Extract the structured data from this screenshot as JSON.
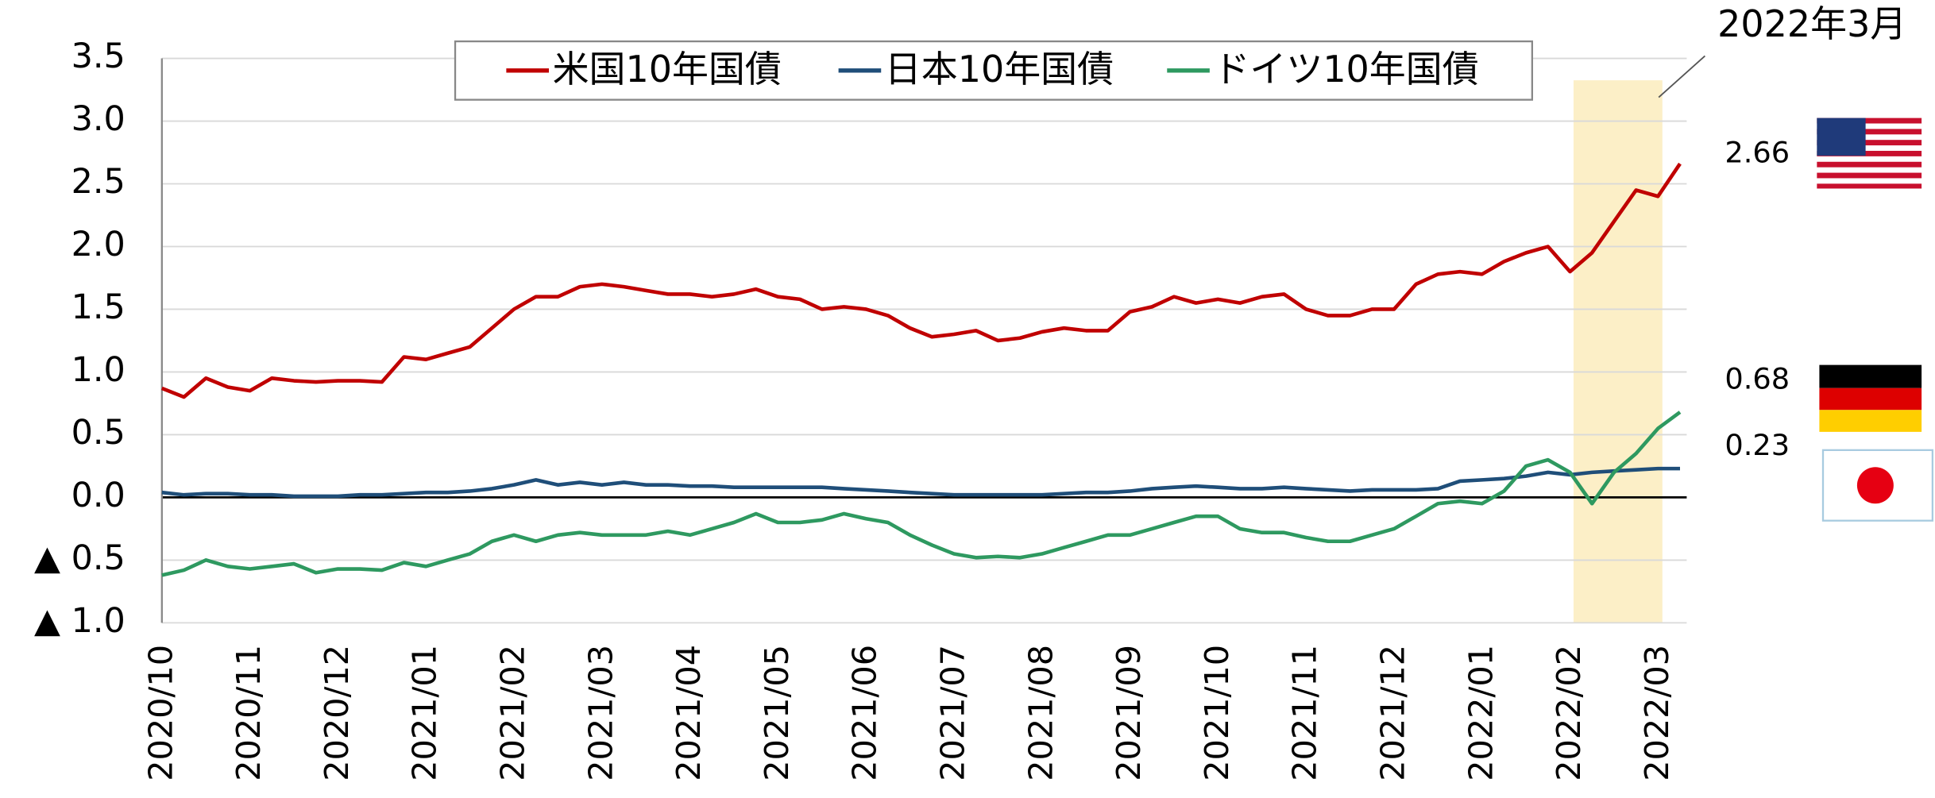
{
  "chart_data": {
    "type": "line",
    "categories": [
      "2020/10",
      null,
      null,
      null,
      "2020/11",
      null,
      null,
      null,
      "2020/12",
      null,
      null,
      null,
      "2021/01",
      null,
      null,
      null,
      "2021/02",
      null,
      null,
      null,
      "2021/03",
      null,
      null,
      null,
      "2021/04",
      null,
      null,
      null,
      "2021/05",
      null,
      null,
      null,
      "2021/06",
      null,
      null,
      null,
      "2021/07",
      null,
      null,
      null,
      "2021/08",
      null,
      null,
      null,
      "2021/09",
      null,
      null,
      null,
      "2021/10",
      null,
      null,
      null,
      "2021/11",
      null,
      null,
      null,
      "2021/12",
      null,
      null,
      null,
      "2022/01",
      null,
      null,
      null,
      "2022/02",
      null,
      null,
      null,
      "2022/03",
      null
    ],
    "series": [
      {
        "name": "米国10年国債",
        "color": "#c00000",
        "end_label": "2.66",
        "values": [
          0.87,
          0.8,
          0.95,
          0.88,
          0.85,
          0.95,
          0.93,
          0.92,
          0.93,
          0.93,
          0.92,
          1.12,
          1.1,
          1.15,
          1.2,
          1.35,
          1.5,
          1.6,
          1.6,
          1.68,
          1.7,
          1.68,
          1.65,
          1.62,
          1.62,
          1.6,
          1.62,
          1.66,
          1.6,
          1.58,
          1.5,
          1.52,
          1.5,
          1.45,
          1.35,
          1.28,
          1.3,
          1.33,
          1.25,
          1.27,
          1.32,
          1.35,
          1.33,
          1.33,
          1.48,
          1.52,
          1.6,
          1.55,
          1.58,
          1.55,
          1.6,
          1.62,
          1.5,
          1.45,
          1.45,
          1.5,
          1.5,
          1.7,
          1.78,
          1.8,
          1.78,
          1.88,
          1.95,
          2.0,
          1.8,
          1.95,
          2.2,
          2.45,
          2.4,
          2.66
        ]
      },
      {
        "name": "日本10年国債",
        "color": "#1f4e79",
        "end_label": "0.23",
        "values": [
          0.04,
          0.02,
          0.03,
          0.03,
          0.02,
          0.02,
          0.01,
          0.01,
          0.01,
          0.02,
          0.02,
          0.03,
          0.04,
          0.04,
          0.05,
          0.07,
          0.1,
          0.14,
          0.1,
          0.12,
          0.1,
          0.12,
          0.1,
          0.1,
          0.09,
          0.09,
          0.08,
          0.08,
          0.08,
          0.08,
          0.08,
          0.07,
          0.06,
          0.05,
          0.04,
          0.03,
          0.02,
          0.02,
          0.02,
          0.02,
          0.02,
          0.03,
          0.04,
          0.04,
          0.05,
          0.07,
          0.08,
          0.09,
          0.08,
          0.07,
          0.07,
          0.08,
          0.07,
          0.06,
          0.05,
          0.06,
          0.06,
          0.06,
          0.07,
          0.13,
          0.14,
          0.15,
          0.17,
          0.2,
          0.18,
          0.2,
          0.21,
          0.22,
          0.23,
          0.23
        ]
      },
      {
        "name": "ドイツ10年国債",
        "color": "#2e9960",
        "end_label": "0.68",
        "values": [
          -0.62,
          -0.58,
          -0.5,
          -0.55,
          -0.57,
          -0.55,
          -0.53,
          -0.6,
          -0.57,
          -0.57,
          -0.58,
          -0.52,
          -0.55,
          -0.5,
          -0.45,
          -0.35,
          -0.3,
          -0.35,
          -0.3,
          -0.28,
          -0.3,
          -0.3,
          -0.3,
          -0.27,
          -0.3,
          -0.25,
          -0.2,
          -0.13,
          -0.2,
          -0.2,
          -0.18,
          -0.13,
          -0.17,
          -0.2,
          -0.3,
          -0.38,
          -0.45,
          -0.48,
          -0.47,
          -0.48,
          -0.45,
          -0.4,
          -0.35,
          -0.3,
          -0.3,
          -0.25,
          -0.2,
          -0.15,
          -0.15,
          -0.25,
          -0.28,
          -0.28,
          -0.32,
          -0.35,
          -0.35,
          -0.3,
          -0.25,
          -0.15,
          -0.05,
          -0.03,
          -0.05,
          0.05,
          0.25,
          0.3,
          0.2,
          -0.05,
          0.2,
          0.35,
          0.55,
          0.68
        ]
      }
    ],
    "ylim": [
      -1.0,
      3.5
    ],
    "yticks": [
      {
        "value": -1.0,
        "label": "▲ 1.0"
      },
      {
        "value": -0.5,
        "label": "▲ 0.5"
      },
      {
        "value": 0,
        "label": "0.0"
      },
      0.5,
      {
        "value": 1,
        "label": "1.0"
      },
      1.5,
      {
        "value": 2,
        "label": "2.0"
      },
      2.5,
      {
        "value": 3,
        "label": "3.0"
      },
      3.5
    ],
    "grid": true,
    "legend": "top",
    "annotation": "2022年3月"
  }
}
